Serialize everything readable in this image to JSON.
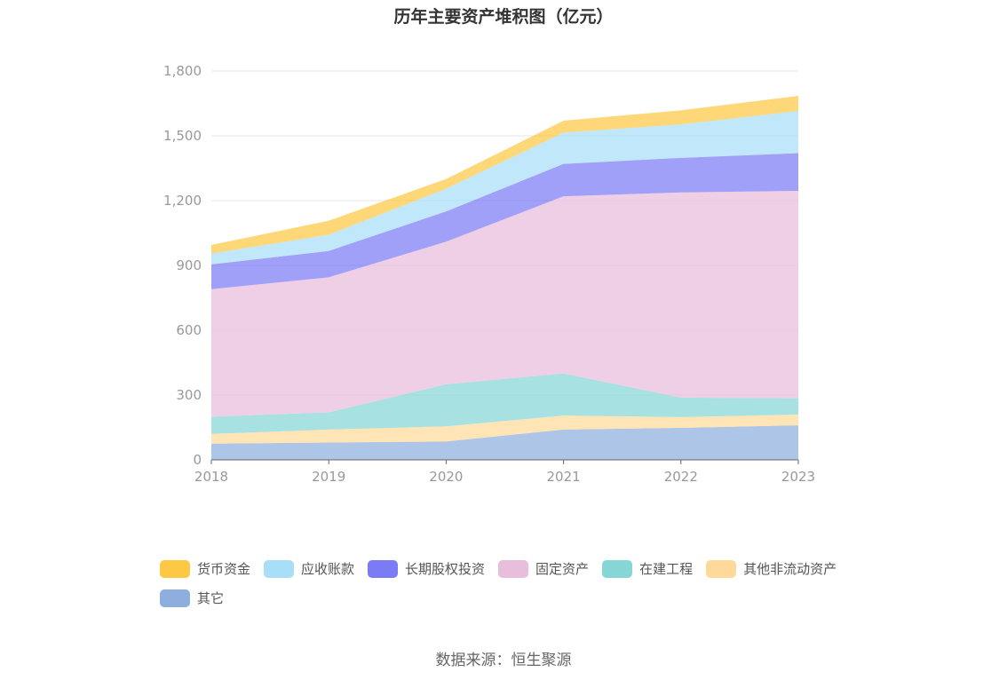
{
  "chart_data": {
    "type": "area",
    "stacked": true,
    "title": "历年主要资产堆积图（亿元）",
    "categories": [
      "2018",
      "2019",
      "2020",
      "2021",
      "2022",
      "2023"
    ],
    "ylim": [
      0,
      1800
    ],
    "yticks": [
      0,
      300,
      600,
      900,
      1200,
      1500,
      1800
    ],
    "ytick_labels": [
      "0",
      "300",
      "600",
      "900",
      "1,200",
      "1,500",
      "1,800"
    ],
    "series": [
      {
        "name": "其它",
        "color": "#8eaedd",
        "values": [
          75,
          80,
          85,
          140,
          148,
          160
        ]
      },
      {
        "name": "其他非流动资产",
        "color": "#ffd99a",
        "values": [
          45,
          60,
          70,
          65,
          50,
          50
        ]
      },
      {
        "name": "在建工程",
        "color": "#86d6d6",
        "values": [
          80,
          80,
          195,
          195,
          90,
          75
        ]
      },
      {
        "name": "固定资产",
        "color": "#e9bddc",
        "values": [
          590,
          625,
          660,
          820,
          950,
          960
        ]
      },
      {
        "name": "长期股权投资",
        "color": "#7b7cf5",
        "values": [
          115,
          122,
          140,
          150,
          160,
          175
        ]
      },
      {
        "name": "应收账款",
        "color": "#a8def8",
        "values": [
          50,
          75,
          105,
          145,
          155,
          195
        ]
      },
      {
        "name": "货币资金",
        "color": "#fdc944",
        "values": [
          40,
          65,
          45,
          55,
          65,
          70
        ]
      }
    ],
    "legend_position": "bottom",
    "grid": true
  },
  "legend_order": [
    "货币资金",
    "应收账款",
    "长期股权投资",
    "固定资产",
    "在建工程",
    "其他非流动资产",
    "其它"
  ],
  "source": "数据来源：恒生聚源"
}
